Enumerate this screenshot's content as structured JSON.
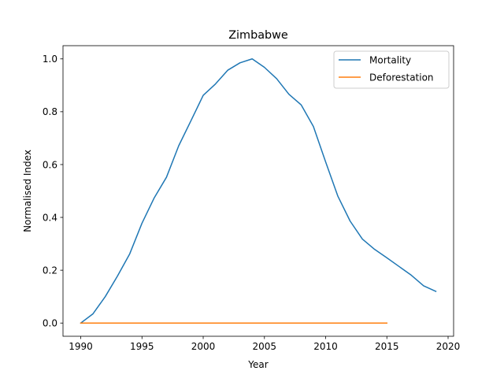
{
  "chart_data": {
    "type": "line",
    "title": "Zimbabwe",
    "xlabel": "Year",
    "ylabel": "Normalised Index",
    "xlim": [
      1988.55,
      2020.45
    ],
    "ylim": [
      -0.05,
      1.05
    ],
    "xticks": [
      1990,
      1995,
      2000,
      2005,
      2010,
      2015,
      2020
    ],
    "yticks": [
      0.0,
      0.2,
      0.4,
      0.6,
      0.8,
      1.0
    ],
    "xtick_labels": [
      "1990",
      "1995",
      "2000",
      "2005",
      "2010",
      "2015",
      "2020"
    ],
    "ytick_labels": [
      "0.0",
      "0.2",
      "0.4",
      "0.6",
      "0.8",
      "1.0"
    ],
    "grid": false,
    "legend_position": "top-right",
    "series": [
      {
        "name": "Mortality",
        "color": "#1f77b4",
        "x": [
          1990,
          1991,
          1992,
          1993,
          1994,
          1995,
          1996,
          1997,
          1998,
          1999,
          2000,
          2001,
          2002,
          2003,
          2004,
          2005,
          2006,
          2007,
          2008,
          2009,
          2010,
          2011,
          2012,
          2013,
          2014,
          2015,
          2016,
          2017,
          2018,
          2019
        ],
        "y": [
          0.0,
          0.035,
          0.1,
          0.178,
          0.262,
          0.378,
          0.474,
          0.552,
          0.671,
          0.766,
          0.862,
          0.905,
          0.957,
          0.985,
          1.0,
          0.968,
          0.925,
          0.866,
          0.826,
          0.744,
          0.61,
          0.48,
          0.386,
          0.318,
          0.279,
          0.247,
          0.214,
          0.181,
          0.141,
          0.12
        ]
      },
      {
        "name": "Deforestation",
        "color": "#ff7f0e",
        "x": [
          1990,
          1991,
          1992,
          1993,
          1994,
          1995,
          1996,
          1997,
          1998,
          1999,
          2000,
          2001,
          2002,
          2003,
          2004,
          2005,
          2006,
          2007,
          2008,
          2009,
          2010,
          2011,
          2012,
          2013,
          2014,
          2015
        ],
        "y": [
          0.0,
          0.0,
          0.0,
          0.0,
          0.0,
          0.0,
          0.0,
          0.0,
          0.0,
          0.0,
          0.0,
          0.0,
          0.0,
          0.0,
          0.0,
          0.0,
          0.0,
          0.0,
          0.0,
          0.0,
          0.0,
          0.0,
          0.0,
          0.0,
          0.0,
          0.0
        ]
      }
    ]
  }
}
